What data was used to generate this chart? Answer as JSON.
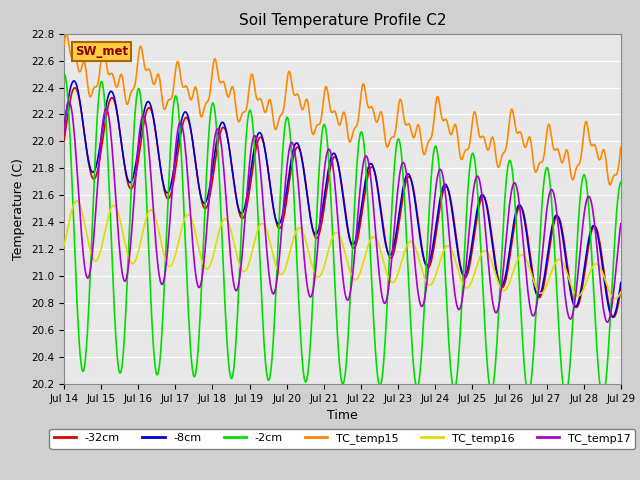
{
  "title": "Soil Temperature Profile C2",
  "xlabel": "Time",
  "ylabel": "Temperature (C)",
  "ylim": [
    20.2,
    22.8
  ],
  "xlim_days": [
    0,
    15
  ],
  "annotation": "SW_met",
  "series": {
    "-32cm": {
      "color": "#dd0000",
      "lw": 1.2
    },
    "-8cm": {
      "color": "#0000cc",
      "lw": 1.2
    },
    "-2cm": {
      "color": "#00dd00",
      "lw": 1.2
    },
    "TC_temp15": {
      "color": "#ff8800",
      "lw": 1.2
    },
    "TC_temp16": {
      "color": "#dddd00",
      "lw": 1.2
    },
    "TC_temp17": {
      "color": "#aa00cc",
      "lw": 1.2
    }
  },
  "xtick_labels": [
    "Jul 14",
    "Jul 15",
    "Jul 16",
    "Jul 17",
    "Jul 18",
    "Jul 19",
    "Jul 20",
    "Jul 21",
    "Jul 22",
    "Jul 23",
    "Jul 24",
    "Jul 25",
    "Jul 26",
    "Jul 27",
    "Jul 28",
    "Jul 29"
  ],
  "xtick_positions": [
    0,
    1,
    2,
    3,
    4,
    5,
    6,
    7,
    8,
    9,
    10,
    11,
    12,
    13,
    14,
    15
  ]
}
